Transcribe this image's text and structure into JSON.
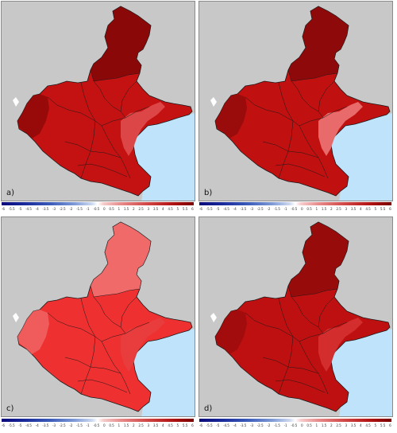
{
  "colors": {
    "background": "#c8c8c8",
    "sea": "#bfe3fb",
    "border": "#1a1a1a"
  },
  "colorbar": {
    "ticks": [
      "-6",
      "-5.5",
      "-5",
      "-4.5",
      "-4",
      "-3.5",
      "-3",
      "-2.5",
      "-2",
      "-1.5",
      "-1",
      "-0.5",
      "0",
      "0.5",
      "1",
      "1.5",
      "2",
      "2.5",
      "3",
      "3.5",
      "4",
      "4.5",
      "5",
      "5.5",
      "6"
    ]
  },
  "panels": [
    {
      "label": "a)",
      "base": "#c41212",
      "alpine": "#8a0808",
      "coast": "#e25050"
    },
    {
      "label": "b)",
      "base": "#c01010",
      "alpine": "#8e0a0a",
      "coast": "#ee7a7a"
    },
    {
      "label": "c)",
      "base": "#ee3030",
      "alpine": "#f06a6a",
      "coast": "#e84040"
    },
    {
      "label": "d)",
      "base": "#be1010",
      "alpine": "#980b0b",
      "coast": "#d83232"
    }
  ]
}
